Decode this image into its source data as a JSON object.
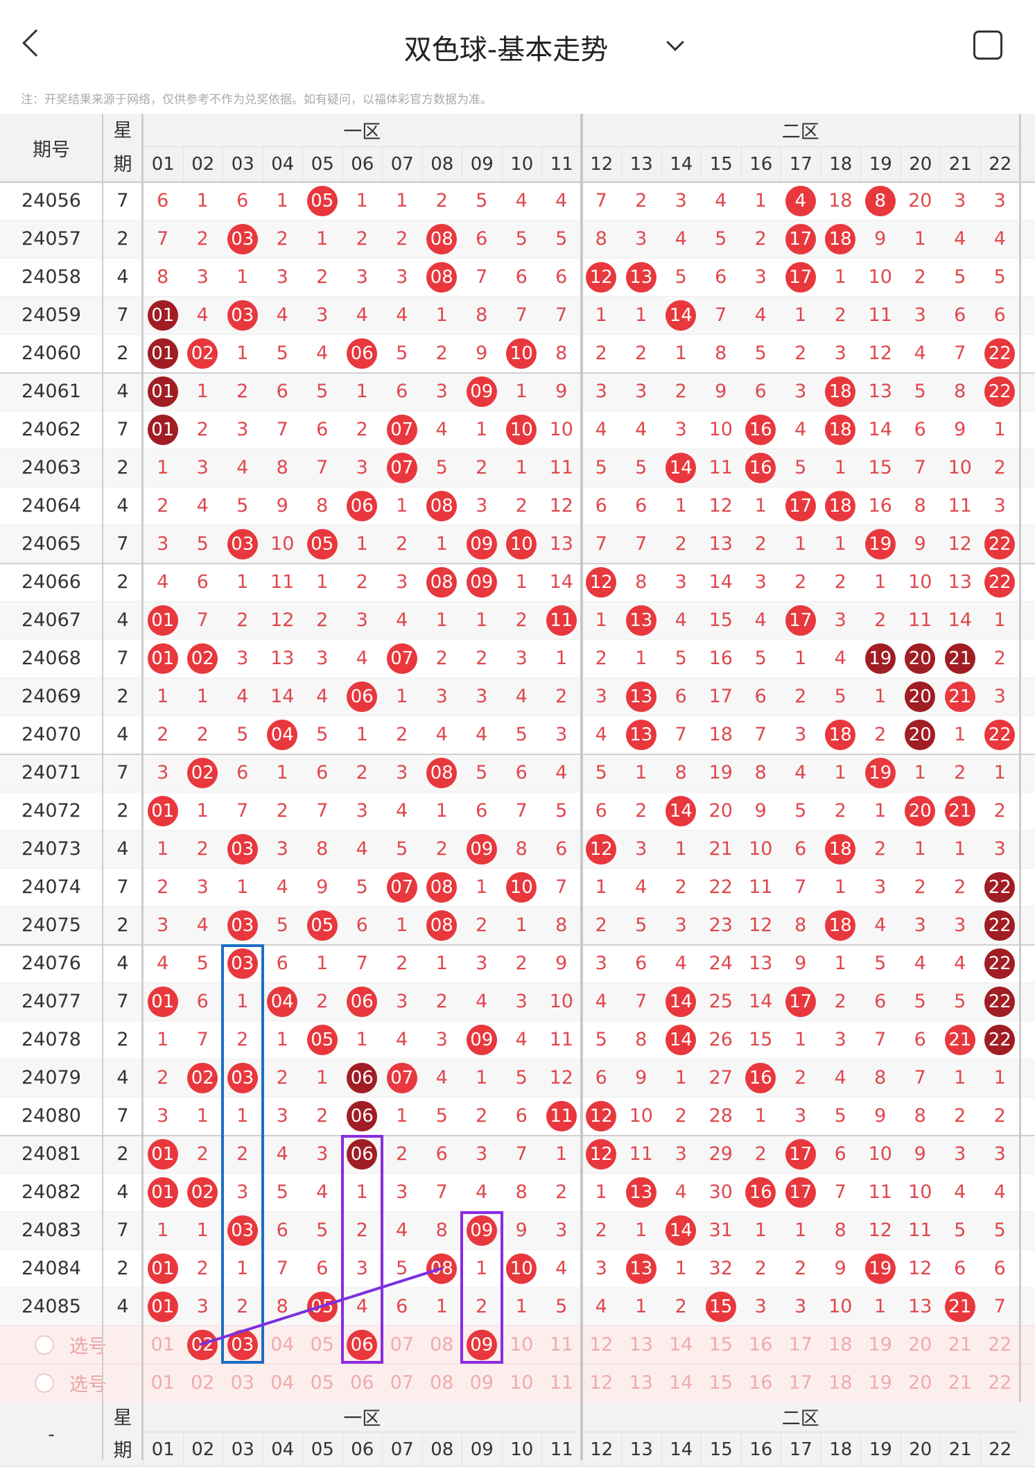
{
  "header": {
    "title": "双色球-基本走势",
    "note": "注：开奖结果来源于网络，仅供参考不作为兑奖依据。如有疑问，以福体彩官方数据为准。"
  },
  "table": {
    "issue_header": "期号",
    "week_header": "星期",
    "zones": [
      "一区",
      "二区"
    ],
    "columns": [
      "01",
      "02",
      "03",
      "04",
      "05",
      "06",
      "07",
      "08",
      "09",
      "10",
      "11",
      "12",
      "13",
      "14",
      "15",
      "16",
      "17",
      "18",
      "19",
      "20",
      "21",
      "22"
    ],
    "hit_color": "#e8383d",
    "repeat_color": "#a11d24",
    "miss_color": "#e0474c",
    "rows": [
      {
        "issue": "24056",
        "week": "7",
        "cells": [
          "6",
          "1",
          "6",
          "1",
          "05",
          "1",
          "1",
          "2",
          "5",
          "4",
          "4",
          "7",
          "2",
          "3",
          "4",
          "1",
          "4",
          "18",
          "8",
          "20",
          "3",
          "3"
        ],
        "hit": [
          4,
          16,
          18
        ],
        "repeat": []
      },
      {
        "issue": "24057",
        "week": "2",
        "cells": [
          "7",
          "2",
          "03",
          "2",
          "1",
          "2",
          "2",
          "08",
          "6",
          "5",
          "5",
          "8",
          "3",
          "4",
          "5",
          "2",
          "17",
          "18",
          "9",
          "1",
          "4",
          "4"
        ],
        "hit": [
          2,
          7,
          16,
          17
        ],
        "repeat": []
      },
      {
        "issue": "24058",
        "week": "4",
        "cells": [
          "8",
          "3",
          "1",
          "3",
          "2",
          "3",
          "3",
          "08",
          "7",
          "6",
          "6",
          "12",
          "13",
          "5",
          "6",
          "3",
          "17",
          "1",
          "10",
          "2",
          "5",
          "5"
        ],
        "hit": [
          7,
          11,
          12,
          16
        ],
        "repeat": []
      },
      {
        "issue": "24059",
        "week": "7",
        "cells": [
          "01",
          "4",
          "03",
          "4",
          "3",
          "4",
          "4",
          "1",
          "8",
          "7",
          "7",
          "1",
          "1",
          "14",
          "7",
          "4",
          "1",
          "2",
          "11",
          "3",
          "6",
          "6"
        ],
        "hit": [
          2,
          13
        ],
        "repeat": [
          0
        ]
      },
      {
        "issue": "24060",
        "week": "2",
        "cells": [
          "01",
          "02",
          "1",
          "5",
          "4",
          "06",
          "5",
          "2",
          "9",
          "10",
          "8",
          "2",
          "2",
          "1",
          "8",
          "5",
          "2",
          "3",
          "12",
          "4",
          "7",
          "22"
        ],
        "hit": [
          1,
          5,
          9,
          21
        ],
        "repeat": [
          0
        ]
      },
      {
        "issue": "24061",
        "week": "4",
        "cells": [
          "01",
          "1",
          "2",
          "6",
          "5",
          "1",
          "6",
          "3",
          "09",
          "1",
          "9",
          "3",
          "3",
          "2",
          "9",
          "6",
          "3",
          "18",
          "13",
          "5",
          "8",
          "22"
        ],
        "hit": [
          8,
          17,
          21
        ],
        "repeat": [
          0
        ]
      },
      {
        "issue": "24062",
        "week": "7",
        "cells": [
          "01",
          "2",
          "3",
          "7",
          "6",
          "2",
          "07",
          "4",
          "1",
          "10",
          "10",
          "4",
          "4",
          "3",
          "10",
          "16",
          "4",
          "18",
          "14",
          "6",
          "9",
          "1"
        ],
        "hit": [
          6,
          9,
          15,
          17
        ],
        "repeat": [
          0
        ]
      },
      {
        "issue": "24063",
        "week": "2",
        "cells": [
          "1",
          "3",
          "4",
          "8",
          "7",
          "3",
          "07",
          "5",
          "2",
          "1",
          "11",
          "5",
          "5",
          "14",
          "11",
          "16",
          "5",
          "1",
          "15",
          "7",
          "10",
          "2"
        ],
        "hit": [
          6,
          13,
          15
        ],
        "repeat": []
      },
      {
        "issue": "24064",
        "week": "4",
        "cells": [
          "2",
          "4",
          "5",
          "9",
          "8",
          "06",
          "1",
          "08",
          "3",
          "2",
          "12",
          "6",
          "6",
          "1",
          "12",
          "1",
          "17",
          "18",
          "16",
          "8",
          "11",
          "3"
        ],
        "hit": [
          5,
          7,
          16,
          17
        ],
        "repeat": []
      },
      {
        "issue": "24065",
        "week": "7",
        "cells": [
          "3",
          "5",
          "03",
          "10",
          "05",
          "1",
          "2",
          "1",
          "09",
          "10",
          "13",
          "7",
          "7",
          "2",
          "13",
          "2",
          "1",
          "1",
          "19",
          "9",
          "12",
          "22"
        ],
        "hit": [
          2,
          4,
          8,
          9,
          18,
          21
        ],
        "repeat": []
      },
      {
        "issue": "24066",
        "week": "2",
        "cells": [
          "4",
          "6",
          "1",
          "11",
          "1",
          "2",
          "3",
          "08",
          "09",
          "1",
          "14",
          "12",
          "8",
          "3",
          "14",
          "3",
          "2",
          "2",
          "1",
          "10",
          "13",
          "22"
        ],
        "hit": [
          7,
          8,
          11,
          21
        ],
        "repeat": []
      },
      {
        "issue": "24067",
        "week": "4",
        "cells": [
          "01",
          "7",
          "2",
          "12",
          "2",
          "3",
          "4",
          "1",
          "1",
          "2",
          "11",
          "1",
          "13",
          "4",
          "15",
          "4",
          "17",
          "3",
          "2",
          "11",
          "14",
          "1"
        ],
        "hit": [
          0,
          10,
          12,
          16
        ],
        "repeat": []
      },
      {
        "issue": "24068",
        "week": "7",
        "cells": [
          "01",
          "02",
          "3",
          "13",
          "3",
          "4",
          "07",
          "2",
          "2",
          "3",
          "1",
          "2",
          "1",
          "5",
          "16",
          "5",
          "1",
          "4",
          "19",
          "20",
          "21",
          "2"
        ],
        "hit": [
          0,
          1,
          6
        ],
        "repeat": [
          18,
          19,
          20
        ]
      },
      {
        "issue": "24069",
        "week": "2",
        "cells": [
          "1",
          "1",
          "4",
          "14",
          "4",
          "06",
          "1",
          "3",
          "3",
          "4",
          "2",
          "3",
          "13",
          "6",
          "17",
          "6",
          "2",
          "5",
          "1",
          "20",
          "21",
          "3"
        ],
        "hit": [
          5,
          12,
          20
        ],
        "repeat": [
          19
        ]
      },
      {
        "issue": "24070",
        "week": "4",
        "cells": [
          "2",
          "2",
          "5",
          "04",
          "5",
          "1",
          "2",
          "4",
          "4",
          "5",
          "3",
          "4",
          "13",
          "7",
          "18",
          "7",
          "3",
          "18",
          "2",
          "20",
          "1",
          "22"
        ],
        "hit": [
          3,
          12,
          17,
          21
        ],
        "repeat": [
          19
        ]
      },
      {
        "issue": "24071",
        "week": "7",
        "cells": [
          "3",
          "02",
          "6",
          "1",
          "6",
          "2",
          "3",
          "08",
          "5",
          "6",
          "4",
          "5",
          "1",
          "8",
          "19",
          "8",
          "4",
          "1",
          "19",
          "1",
          "2",
          "1"
        ],
        "hit": [
          1,
          7,
          18
        ],
        "repeat": []
      },
      {
        "issue": "24072",
        "week": "2",
        "cells": [
          "01",
          "1",
          "7",
          "2",
          "7",
          "3",
          "4",
          "1",
          "6",
          "7",
          "5",
          "6",
          "2",
          "14",
          "20",
          "9",
          "5",
          "2",
          "1",
          "20",
          "21",
          "2"
        ],
        "hit": [
          0,
          13,
          19,
          20
        ],
        "repeat": []
      },
      {
        "issue": "24073",
        "week": "4",
        "cells": [
          "1",
          "2",
          "03",
          "3",
          "8",
          "4",
          "5",
          "2",
          "09",
          "8",
          "6",
          "12",
          "3",
          "1",
          "21",
          "10",
          "6",
          "18",
          "2",
          "1",
          "1",
          "3"
        ],
        "hit": [
          2,
          8,
          11,
          17
        ],
        "repeat": []
      },
      {
        "issue": "24074",
        "week": "7",
        "cells": [
          "2",
          "3",
          "1",
          "4",
          "9",
          "5",
          "07",
          "08",
          "1",
          "10",
          "7",
          "1",
          "4",
          "2",
          "22",
          "11",
          "7",
          "1",
          "3",
          "2",
          "2",
          "22"
        ],
        "hit": [
          6,
          7,
          9
        ],
        "repeat": [
          21
        ]
      },
      {
        "issue": "24075",
        "week": "2",
        "cells": [
          "3",
          "4",
          "03",
          "5",
          "05",
          "6",
          "1",
          "08",
          "2",
          "1",
          "8",
          "2",
          "5",
          "3",
          "23",
          "12",
          "8",
          "18",
          "4",
          "3",
          "3",
          "22"
        ],
        "hit": [
          2,
          4,
          7,
          17
        ],
        "repeat": [
          21
        ]
      },
      {
        "issue": "24076",
        "week": "4",
        "cells": [
          "4",
          "5",
          "03",
          "6",
          "1",
          "7",
          "2",
          "1",
          "3",
          "2",
          "9",
          "3",
          "6",
          "4",
          "24",
          "13",
          "9",
          "1",
          "5",
          "4",
          "4",
          "22"
        ],
        "hit": [
          2
        ],
        "repeat": [
          21
        ]
      },
      {
        "issue": "24077",
        "week": "7",
        "cells": [
          "01",
          "6",
          "1",
          "04",
          "2",
          "06",
          "3",
          "2",
          "4",
          "3",
          "10",
          "4",
          "7",
          "14",
          "25",
          "14",
          "17",
          "2",
          "6",
          "5",
          "5",
          "22"
        ],
        "hit": [
          0,
          3,
          5,
          13,
          16
        ],
        "repeat": [
          21
        ]
      },
      {
        "issue": "24078",
        "week": "2",
        "cells": [
          "1",
          "7",
          "2",
          "1",
          "05",
          "1",
          "4",
          "3",
          "09",
          "4",
          "11",
          "5",
          "8",
          "14",
          "26",
          "15",
          "1",
          "3",
          "7",
          "6",
          "21",
          "22"
        ],
        "hit": [
          4,
          8,
          13,
          20
        ],
        "repeat": [
          21
        ]
      },
      {
        "issue": "24079",
        "week": "4",
        "cells": [
          "2",
          "02",
          "03",
          "2",
          "1",
          "06",
          "07",
          "4",
          "1",
          "5",
          "12",
          "6",
          "9",
          "1",
          "27",
          "16",
          "2",
          "4",
          "8",
          "7",
          "1",
          "1"
        ],
        "hit": [
          1,
          2,
          6,
          15
        ],
        "repeat": [
          5
        ]
      },
      {
        "issue": "24080",
        "week": "7",
        "cells": [
          "3",
          "1",
          "1",
          "3",
          "2",
          "06",
          "1",
          "5",
          "2",
          "6",
          "11",
          "12",
          "10",
          "2",
          "28",
          "1",
          "3",
          "5",
          "9",
          "8",
          "2",
          "2"
        ],
        "hit": [
          10,
          11
        ],
        "repeat": [
          5
        ]
      },
      {
        "issue": "24081",
        "week": "2",
        "cells": [
          "01",
          "2",
          "2",
          "4",
          "3",
          "06",
          "2",
          "6",
          "3",
          "7",
          "1",
          "12",
          "11",
          "3",
          "29",
          "2",
          "17",
          "6",
          "10",
          "9",
          "3",
          "3"
        ],
        "hit": [
          0,
          11,
          16
        ],
        "repeat": [
          5
        ]
      },
      {
        "issue": "24082",
        "week": "4",
        "cells": [
          "01",
          "02",
          "3",
          "5",
          "4",
          "1",
          "3",
          "7",
          "4",
          "8",
          "2",
          "1",
          "13",
          "4",
          "30",
          "16",
          "17",
          "7",
          "11",
          "10",
          "4",
          "4"
        ],
        "hit": [
          0,
          1,
          12,
          15,
          16
        ],
        "repeat": []
      },
      {
        "issue": "24083",
        "week": "7",
        "cells": [
          "1",
          "1",
          "03",
          "6",
          "5",
          "2",
          "4",
          "8",
          "09",
          "9",
          "3",
          "2",
          "1",
          "14",
          "31",
          "1",
          "1",
          "8",
          "12",
          "11",
          "5",
          "5"
        ],
        "hit": [
          2,
          8,
          13
        ],
        "repeat": []
      },
      {
        "issue": "24084",
        "week": "2",
        "cells": [
          "01",
          "2",
          "1",
          "7",
          "6",
          "3",
          "5",
          "08",
          "1",
          "10",
          "4",
          "3",
          "13",
          "1",
          "32",
          "2",
          "2",
          "9",
          "19",
          "12",
          "6",
          "6"
        ],
        "hit": [
          0,
          7,
          9,
          12,
          18
        ],
        "repeat": []
      },
      {
        "issue": "24085",
        "week": "4",
        "cells": [
          "01",
          "3",
          "2",
          "8",
          "05",
          "4",
          "6",
          "1",
          "2",
          "1",
          "5",
          "4",
          "1",
          "2",
          "15",
          "3",
          "3",
          "10",
          "1",
          "13",
          "21",
          "7"
        ],
        "hit": [
          0,
          4,
          14,
          20
        ],
        "repeat": []
      }
    ],
    "select_rows": [
      {
        "label": "选号",
        "cells": [
          "01",
          "02",
          "03",
          "04",
          "05",
          "06",
          "07",
          "08",
          "09",
          "10",
          "11",
          "12",
          "13",
          "14",
          "15",
          "16",
          "17",
          "18",
          "19",
          "20",
          "21",
          "22"
        ],
        "hit": [
          1,
          2,
          5,
          8
        ]
      },
      {
        "label": "选号",
        "cells": [
          "01",
          "02",
          "03",
          "04",
          "05",
          "06",
          "07",
          "08",
          "09",
          "10",
          "11",
          "12",
          "13",
          "14",
          "15",
          "16",
          "17",
          "18",
          "19",
          "20",
          "21",
          "22"
        ],
        "hit": []
      }
    ]
  },
  "footer_header": {
    "issue_header": "-",
    "week_header": "星期",
    "zones": [
      "一区",
      "二区"
    ],
    "columns": [
      "01",
      "02",
      "03",
      "04",
      "05",
      "06",
      "07",
      "08",
      "09",
      "10",
      "11",
      "12",
      "13",
      "14",
      "15",
      "16",
      "17",
      "18",
      "19",
      "20",
      "21",
      "22"
    ]
  }
}
